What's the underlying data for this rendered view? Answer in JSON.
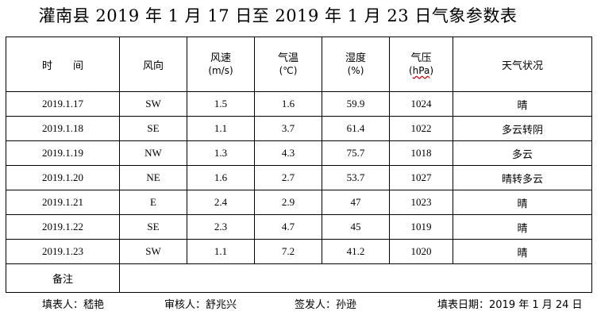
{
  "title": "灌南县 2019 年 1 月 17 日至 2019 年 1 月 23 日气象参数表",
  "table": {
    "headers": {
      "time": "时　　间",
      "wind_dir": "风向",
      "wind_speed": "风速",
      "wind_speed_unit": "(m/s)",
      "temp": "气温",
      "temp_unit": "(℃)",
      "humidity": "湿度",
      "humidity_unit": "(%)",
      "pressure": "气压",
      "pressure_unit_open": "(",
      "pressure_unit": "hPa",
      "pressure_unit_close": ")",
      "weather": "天气状况"
    },
    "rows": [
      {
        "date": "2019.1.17",
        "wind_dir": "SW",
        "wind_speed": "1.5",
        "temp": "1.6",
        "humidity": "59.9",
        "pressure": "1024",
        "weather": "晴"
      },
      {
        "date": "2019.1.18",
        "wind_dir": "SE",
        "wind_speed": "1.1",
        "temp": "3.7",
        "humidity": "61.4",
        "pressure": "1022",
        "weather": "多云转阴"
      },
      {
        "date": "2019.1.19",
        "wind_dir": "NW",
        "wind_speed": "1.3",
        "temp": "4.3",
        "humidity": "75.7",
        "pressure": "1018",
        "weather": "多云"
      },
      {
        "date": "2019.1.20",
        "wind_dir": "NE",
        "wind_speed": "1.6",
        "temp": "2.7",
        "humidity": "53.7",
        "pressure": "1027",
        "weather": "晴转多云"
      },
      {
        "date": "2019.1.21",
        "wind_dir": "E",
        "wind_speed": "2.4",
        "temp": "2.9",
        "humidity": "47",
        "pressure": "1023",
        "weather": "晴"
      },
      {
        "date": "2019.1.22",
        "wind_dir": "SE",
        "wind_speed": "2.3",
        "temp": "4.7",
        "humidity": "45",
        "pressure": "1019",
        "weather": "晴"
      },
      {
        "date": "2019.1.23",
        "wind_dir": "SW",
        "wind_speed": "1.1",
        "temp": "7.2",
        "humidity": "41.2",
        "pressure": "1020",
        "weather": "晴"
      }
    ],
    "remark_label": "备注",
    "remark_value": ""
  },
  "footer": {
    "filler": "填表人：嵇艳",
    "reviewer": "审核人：舒兆兴",
    "issuer": "签发人：孙逊",
    "fill_date": "填表日期：2019 年 1 月 24 日"
  }
}
